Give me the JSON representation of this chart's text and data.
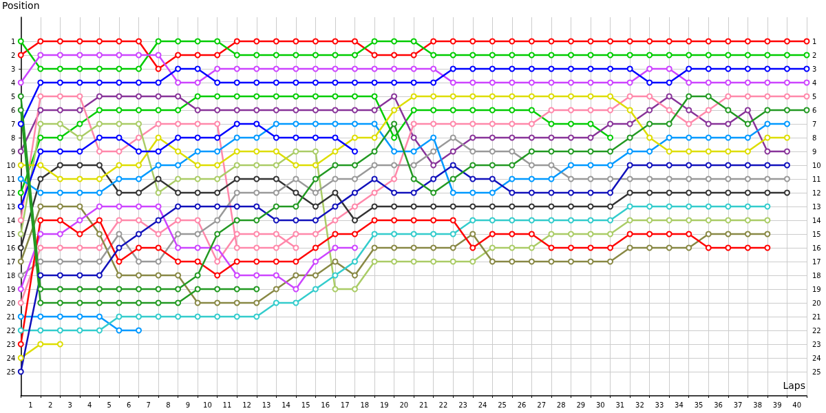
{
  "chart_data": {
    "type": "line",
    "xlabel": "Laps",
    "ylabel": "Position",
    "x": [
      0,
      1,
      2,
      3,
      4,
      5,
      6,
      7,
      8,
      9,
      10,
      11,
      12,
      13,
      14,
      15,
      16,
      17,
      18,
      19,
      20,
      21,
      22,
      23,
      24,
      25,
      26,
      27,
      28,
      29,
      30,
      31,
      32,
      33,
      34,
      35,
      36,
      37,
      38,
      39,
      40
    ],
    "xlim": [
      0,
      40
    ],
    "xticks": [
      {
        "value": 0,
        "label": null
      },
      {
        "value": 1,
        "label": null
      },
      {
        "value": 2,
        "label": null
      },
      {
        "value": 3,
        "label": null
      },
      {
        "value": 4,
        "label": null
      },
      {
        "value": 5,
        "label": null
      },
      {
        "value": 6,
        "label": null
      },
      {
        "value": 7,
        "label": null
      },
      {
        "value": 8,
        "label": null
      },
      {
        "value": 9,
        "label": null
      },
      {
        "value": 10,
        "label": null
      },
      {
        "value": 11,
        "label": null
      },
      {
        "value": 12,
        "label": null
      },
      {
        "value": 13,
        "label": null
      },
      {
        "value": 14,
        "label": null
      },
      {
        "value": 15,
        "label": null
      },
      {
        "value": 16,
        "label": null
      },
      {
        "value": 17,
        "label": null
      },
      {
        "value": 18,
        "label": null
      },
      {
        "value": 19,
        "label": null
      },
      {
        "value": 20,
        "label": null
      },
      {
        "value": 21,
        "label": null
      },
      {
        "value": 22,
        "label": null
      },
      {
        "value": 23,
        "label": null
      },
      {
        "value": 24,
        "label": null
      },
      {
        "value": 25,
        "label": null
      },
      {
        "value": 26,
        "label": null
      },
      {
        "value": 27,
        "label": null
      },
      {
        "value": 28,
        "label": null
      },
      {
        "value": 29,
        "label": null
      },
      {
        "value": 30,
        "label": null
      },
      {
        "value": 31,
        "label": null
      },
      {
        "value": 32,
        "label": null
      },
      {
        "value": 33,
        "label": null
      },
      {
        "value": 34,
        "label": null
      },
      {
        "value": 35,
        "label": null
      },
      {
        "value": 36,
        "label": null
      },
      {
        "value": 37,
        "label": null
      },
      {
        "value": 38,
        "label": null
      },
      {
        "value": 39,
        "label": null
      },
      {
        "value": 40,
        "label": null
      },
      {
        "value": 0.5,
        "label": "1"
      },
      {
        "value": 1.5,
        "label": "2"
      },
      {
        "value": 2.5,
        "label": "3"
      },
      {
        "value": 3.5,
        "label": "4"
      },
      {
        "value": 4.5,
        "label": "5"
      },
      {
        "value": 5.5,
        "label": "6"
      },
      {
        "value": 6.5,
        "label": "7"
      },
      {
        "value": 7.5,
        "label": "8"
      },
      {
        "value": 8.5,
        "label": "9"
      },
      {
        "value": 9.5,
        "label": "10"
      },
      {
        "value": 10.5,
        "label": "11"
      },
      {
        "value": 11.5,
        "label": "12"
      },
      {
        "value": 12.5,
        "label": "13"
      },
      {
        "value": 13.5,
        "label": "14"
      },
      {
        "value": 14.5,
        "label": "15"
      },
      {
        "value": 15.5,
        "label": "16"
      },
      {
        "value": 16.5,
        "label": "17"
      },
      {
        "value": 17.5,
        "label": "18"
      },
      {
        "value": 18.5,
        "label": "19"
      },
      {
        "value": 19.5,
        "label": "20"
      },
      {
        "value": 20.5,
        "label": "21"
      },
      {
        "value": 21.5,
        "label": "22"
      },
      {
        "value": 22.5,
        "label": "23"
      },
      {
        "value": 23.5,
        "label": "24"
      },
      {
        "value": 24.5,
        "label": "25"
      },
      {
        "value": 25.5,
        "label": "26"
      },
      {
        "value": 26.5,
        "label": "27"
      },
      {
        "value": 27.5,
        "label": "28"
      },
      {
        "value": 28.5,
        "label": "29"
      },
      {
        "value": 29.5,
        "label": "30"
      },
      {
        "value": 30.5,
        "label": "31"
      },
      {
        "value": 31.5,
        "label": "32"
      },
      {
        "value": 32.5,
        "label": "33"
      },
      {
        "value": 33.5,
        "label": "34"
      },
      {
        "value": 34.5,
        "label": "35"
      },
      {
        "value": 35.5,
        "label": "36"
      },
      {
        "value": 36.5,
        "label": "37"
      },
      {
        "value": 37.5,
        "label": "38"
      },
      {
        "value": 38.5,
        "label": "39"
      },
      {
        "value": 39.5,
        "label": "40"
      }
    ],
    "ylim": [
      26.75,
      -0.75
    ],
    "yticks": [
      1,
      2,
      3,
      4,
      5,
      6,
      7,
      8,
      9,
      10,
      11,
      12,
      13,
      14,
      15,
      16,
      17,
      18,
      19,
      20,
      21,
      22,
      23,
      24,
      25
    ],
    "y2lim": [
      26.75,
      -0.75
    ],
    "y2ticks": [
      1,
      2,
      3,
      4,
      5,
      6,
      7,
      8,
      9,
      10,
      11,
      12,
      13,
      14,
      15,
      16,
      17,
      18,
      19,
      20,
      21,
      22,
      23,
      24,
      25
    ],
    "grid": true,
    "marker": "circle",
    "line_style": "solid",
    "series": [
      {
        "color": "#ff0000",
        "values": [
          2,
          1,
          1,
          1,
          1,
          1,
          1,
          3,
          2,
          2,
          2,
          1,
          1,
          1,
          1,
          1,
          1,
          1,
          2,
          2,
          2,
          1,
          1,
          1,
          1,
          1,
          1,
          1,
          1,
          1,
          1,
          1,
          1,
          1,
          1,
          1,
          1,
          1,
          1,
          1,
          1
        ]
      },
      {
        "color": "#00cc00",
        "values": [
          1,
          3,
          3,
          3,
          3,
          3,
          3,
          1,
          1,
          1,
          1,
          2,
          2,
          2,
          2,
          2,
          2,
          2,
          1,
          1,
          1,
          2,
          2,
          2,
          2,
          2,
          2,
          2,
          2,
          2,
          2,
          2,
          2,
          2,
          2,
          2,
          2,
          2,
          2,
          2,
          2
        ]
      },
      {
        "color": "#cc44ff",
        "values": [
          4,
          2,
          2,
          2,
          2,
          2,
          2,
          2,
          4,
          4,
          3,
          3,
          3,
          3,
          3,
          3,
          3,
          3,
          3,
          3,
          3,
          3,
          4,
          4,
          4,
          4,
          4,
          4,
          4,
          4,
          4,
          4,
          3,
          3,
          4,
          4,
          4,
          4,
          4,
          4,
          4
        ]
      },
      {
        "color": "#0000ff",
        "values": [
          7,
          4,
          4,
          4,
          4,
          4,
          4,
          4,
          3,
          3,
          4,
          4,
          4,
          4,
          4,
          4,
          4,
          4,
          4,
          4,
          4,
          4,
          3,
          3,
          3,
          3,
          3,
          3,
          3,
          3,
          3,
          3,
          4,
          4,
          3,
          3,
          3,
          3,
          3,
          3,
          3
        ]
      },
      {
        "color": "#00cc00",
        "values": [
          12,
          8,
          8,
          7,
          6,
          6,
          6,
          6,
          6,
          5,
          5,
          5,
          5,
          5,
          5,
          5,
          5,
          5,
          5,
          8,
          6,
          6,
          6,
          6,
          6,
          6,
          6,
          7,
          7,
          7,
          8,
          null,
          null,
          null,
          null,
          null,
          null,
          null,
          null,
          null,
          null
        ]
      },
      {
        "color": "#883399",
        "values": [
          9,
          6,
          6,
          6,
          5,
          5,
          5,
          5,
          5,
          6,
          6,
          6,
          6,
          6,
          6,
          6,
          6,
          6,
          6,
          5,
          8,
          10,
          9,
          8,
          8,
          8,
          8,
          8,
          8,
          8,
          7,
          7,
          6,
          5,
          6,
          7,
          7,
          6,
          9,
          9,
          null
        ]
      },
      {
        "color": "#ff88aa",
        "values": [
          14,
          5,
          5,
          5,
          9,
          9,
          8,
          7,
          7,
          7,
          7,
          16,
          16,
          16,
          15,
          15,
          14,
          13,
          12,
          11,
          7,
          7,
          7,
          7,
          7,
          7,
          7,
          6,
          6,
          6,
          6,
          5,
          5,
          6,
          7,
          6,
          5,
          5,
          5,
          5,
          5
        ]
      },
      {
        "color": "#ff88aa",
        "values": [
          20,
          16,
          16,
          16,
          16,
          14,
          14,
          15,
          14,
          14,
          17,
          15,
          15,
          15,
          16,
          null,
          null,
          null,
          null,
          null,
          null,
          null,
          null,
          null,
          null,
          null,
          null,
          null,
          null,
          null,
          null,
          null,
          null,
          null,
          null,
          null,
          null,
          null,
          null,
          null,
          null
        ]
      },
      {
        "color": "#aacc66",
        "values": [
          15,
          7,
          7,
          8,
          7,
          7,
          7,
          12,
          11,
          11,
          11,
          10,
          10,
          10,
          9,
          9,
          19,
          19,
          17,
          17,
          17,
          17,
          17,
          17,
          16,
          16,
          16,
          15,
          15,
          15,
          15,
          14,
          14,
          14,
          14,
          14,
          14,
          14,
          14,
          null,
          null
        ]
      },
      {
        "color": "#333333",
        "values": [
          16,
          11,
          10,
          10,
          10,
          12,
          12,
          11,
          12,
          12,
          12,
          11,
          11,
          11,
          12,
          13,
          12,
          14,
          13,
          13,
          13,
          13,
          13,
          13,
          13,
          13,
          13,
          13,
          13,
          13,
          13,
          12,
          12,
          12,
          12,
          12,
          12,
          12,
          12,
          12,
          null
        ]
      },
      {
        "color": "#888844",
        "values": [
          17,
          13,
          13,
          13,
          15,
          18,
          18,
          18,
          18,
          20,
          20,
          20,
          20,
          19,
          18,
          18,
          17,
          18,
          16,
          16,
          16,
          16,
          16,
          15,
          17,
          17,
          17,
          17,
          17,
          17,
          17,
          16,
          16,
          16,
          16,
          15,
          15,
          15,
          15,
          null,
          null
        ]
      },
      {
        "color": "#999999",
        "values": [
          18,
          17,
          17,
          17,
          17,
          15,
          17,
          17,
          15,
          15,
          14,
          12,
          12,
          12,
          11,
          12,
          11,
          11,
          10,
          10,
          10,
          9,
          8,
          9,
          9,
          9,
          10,
          10,
          11,
          11,
          11,
          11,
          11,
          11,
          11,
          11,
          11,
          11,
          11,
          11,
          null
        ]
      },
      {
        "color": "#cc44ff",
        "values": [
          19,
          15,
          15,
          14,
          13,
          13,
          13,
          13,
          16,
          16,
          16,
          18,
          18,
          18,
          19,
          17,
          16,
          16,
          null,
          null,
          null,
          null,
          null,
          null,
          null,
          null,
          null,
          null,
          null,
          null,
          null,
          null,
          null,
          null,
          null,
          null,
          null,
          null,
          null,
          null,
          null
        ]
      },
      {
        "color": "#0099ff",
        "values": [
          21,
          21,
          21,
          21,
          21,
          22,
          22,
          null,
          null,
          null,
          null,
          null,
          null,
          null,
          null,
          null,
          null,
          null,
          null,
          null,
          null,
          null,
          null,
          null,
          null,
          null,
          null,
          null,
          null,
          null,
          null,
          null,
          null,
          null,
          null,
          null,
          null,
          null,
          null,
          null,
          null
        ]
      },
      {
        "color": "#0099ff",
        "values": [
          11,
          12,
          12,
          12,
          12,
          11,
          11,
          10,
          10,
          9,
          9,
          8,
          8,
          7,
          7,
          7,
          7,
          7,
          7,
          9,
          9,
          8,
          12,
          12,
          12,
          11,
          11,
          11,
          10,
          10,
          10,
          9,
          9,
          8,
          8,
          8,
          8,
          8,
          7,
          7,
          null
        ]
      },
      {
        "color": "#33cccc",
        "values": [
          22,
          22,
          22,
          22,
          22,
          21,
          21,
          21,
          21,
          21,
          21,
          21,
          21,
          20,
          20,
          19,
          18,
          17,
          15,
          15,
          15,
          15,
          15,
          14,
          14,
          14,
          14,
          14,
          14,
          14,
          14,
          13,
          13,
          13,
          13,
          13,
          13,
          13,
          13,
          null,
          null
        ]
      },
      {
        "color": "#ff0000",
        "values": [
          23,
          14,
          14,
          15,
          14,
          17,
          16,
          16,
          17,
          17,
          18,
          17,
          17,
          17,
          17,
          16,
          15,
          15,
          14,
          14,
          14,
          14,
          14,
          16,
          15,
          15,
          15,
          16,
          16,
          16,
          16,
          15,
          15,
          15,
          15,
          16,
          16,
          16,
          16,
          null,
          null
        ]
      },
      {
        "color": "#dddd00",
        "values": [
          10,
          10,
          11,
          11,
          11,
          10,
          10,
          8,
          9,
          10,
          10,
          9,
          9,
          9,
          10,
          10,
          9,
          8,
          8,
          6,
          5,
          5,
          5,
          5,
          5,
          5,
          5,
          5,
          5,
          5,
          5,
          6,
          8,
          9,
          9,
          9,
          9,
          9,
          8,
          8,
          null
        ]
      },
      {
        "color": "#dddd00",
        "values": [
          24,
          23,
          23,
          null,
          null,
          null,
          null,
          null,
          null,
          null,
          null,
          null,
          null,
          null,
          null,
          null,
          null,
          null,
          null,
          null,
          null,
          null,
          null,
          null,
          null,
          null,
          null,
          null,
          null,
          null,
          null,
          null,
          null,
          null,
          null,
          null,
          null,
          null,
          null,
          null,
          null
        ]
      },
      {
        "color": "#1111bb",
        "values": [
          25,
          18,
          18,
          18,
          18,
          16,
          15,
          14,
          13,
          13,
          13,
          13,
          13,
          14,
          14,
          14,
          13,
          12,
          11,
          12,
          12,
          11,
          10,
          11,
          11,
          12,
          12,
          12,
          12,
          12,
          12,
          10,
          10,
          10,
          10,
          10,
          10,
          10,
          10,
          10,
          null
        ]
      },
      {
        "color": "#0000ff",
        "values": [
          13,
          9,
          9,
          9,
          8,
          8,
          9,
          9,
          8,
          8,
          8,
          7,
          7,
          8,
          8,
          8,
          8,
          9,
          null,
          null,
          null,
          null,
          null,
          null,
          null,
          null,
          null,
          null,
          null,
          null,
          null,
          null,
          null,
          null,
          null,
          null,
          null,
          null,
          null,
          null,
          null
        ]
      },
      {
        "color": "#229922",
        "values": [
          5,
          19,
          19,
          19,
          19,
          19,
          19,
          19,
          19,
          18,
          15,
          14,
          14,
          13,
          13,
          11,
          10,
          10,
          9,
          7,
          11,
          12,
          11,
          10,
          10,
          10,
          9,
          9,
          9,
          9,
          9,
          8,
          7,
          7,
          5,
          5,
          6,
          7,
          6,
          6,
          6
        ]
      },
      {
        "color": "#229922",
        "values": [
          6,
          20,
          20,
          20,
          20,
          20,
          20,
          20,
          20,
          19,
          19,
          19,
          19,
          null,
          null,
          null,
          null,
          null,
          null,
          null,
          null,
          null,
          null,
          null,
          null,
          null,
          null,
          null,
          null,
          null,
          null,
          null,
          null,
          null,
          null,
          null,
          null,
          null,
          null,
          null,
          null
        ]
      }
    ]
  }
}
